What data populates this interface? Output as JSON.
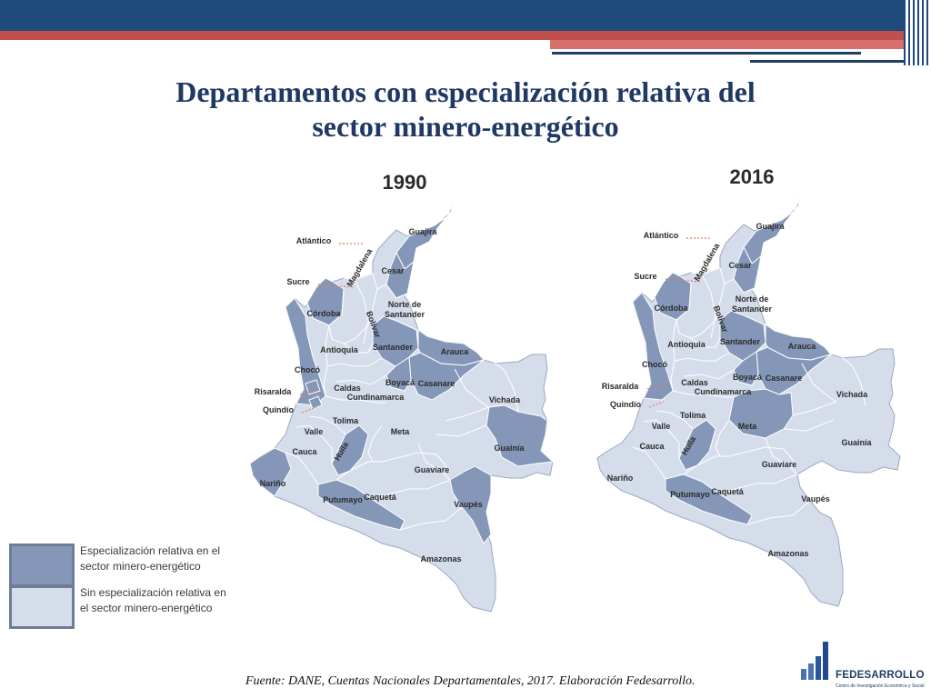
{
  "slide": {
    "title_line1": "Departamentos con especialización relativa del",
    "title_line2": "sector minero-energético",
    "footer": "Fuente: DANE, Cuentas Nacionales Departamentales, 2017. Elaboración Fedesarrollo."
  },
  "colors": {
    "specialized": "#8497b9",
    "not_specialized": "#d5ddeb",
    "border": "#ffffff",
    "title": "#1f3864",
    "bar_blue": "#1f4a7c",
    "bar_red": "#c0504d",
    "leader": "#e07a5f"
  },
  "maps": [
    {
      "year": "1990",
      "specialized": [
        "Guajira",
        "Cesar",
        "Córdoba",
        "Chocó",
        "Santander",
        "Arauca",
        "Casanare",
        "Boyacá",
        "Huila",
        "Putumayo",
        "Guainía",
        "Vaupés",
        "Nariño",
        "Quindío",
        "Risaralda"
      ],
      "labels": [
        "Atlántico",
        "Guajira",
        "Magdalena",
        "Cesar",
        "Sucre",
        "Córdoba",
        "Bolívar",
        "Norte de Santander",
        "Antioquia",
        "Santander",
        "Arauca",
        "Chocó",
        "Boyacá",
        "Casanare",
        "Risaralda",
        "Caldas",
        "Cundinamarca",
        "Vichada",
        "Quindío",
        "Tolima",
        "Valle",
        "Meta",
        "Cauca",
        "Huila",
        "Guainía",
        "Guaviare",
        "Nariño",
        "Caquetá",
        "Putumayo",
        "Vaupés",
        "Amazonas"
      ]
    },
    {
      "year": "2016",
      "specialized": [
        "Guajira",
        "Cesar",
        "Córdoba",
        "Chocó",
        "Santander",
        "Arauca",
        "Casanare",
        "Boyacá",
        "Meta",
        "Huila",
        "Putumayo"
      ],
      "labels": [
        "Atlántico",
        "Guajira",
        "Magdalena",
        "Cesar",
        "Sucre",
        "Córdoba",
        "Bolívar",
        "Norte de Santander",
        "Antioquia",
        "Santander",
        "Arauca",
        "Chocó",
        "Boyacá",
        "Casanare",
        "Risaralda",
        "Caldas",
        "Cundinamarca",
        "Vichada",
        "Quindío",
        "Tolima",
        "Valle",
        "Meta",
        "Cauca",
        "Huila",
        "Guainía",
        "Guaviare",
        "Nariño",
        "Caquetá",
        "Vaupés",
        "Putumayo",
        "Amazonas"
      ]
    }
  ],
  "legend": [
    {
      "key": "specialized",
      "text_line1": "Especialización relativa en el",
      "text_line2": "sector minero-energético"
    },
    {
      "key": "not_specialized",
      "text_line1": "Sin especialización relativa en",
      "text_line2": "el sector minero-energético"
    }
  ],
  "logo": {
    "name": "FEDESARROLLO",
    "subtitle": "Centro de Investigación Económica y Social"
  }
}
